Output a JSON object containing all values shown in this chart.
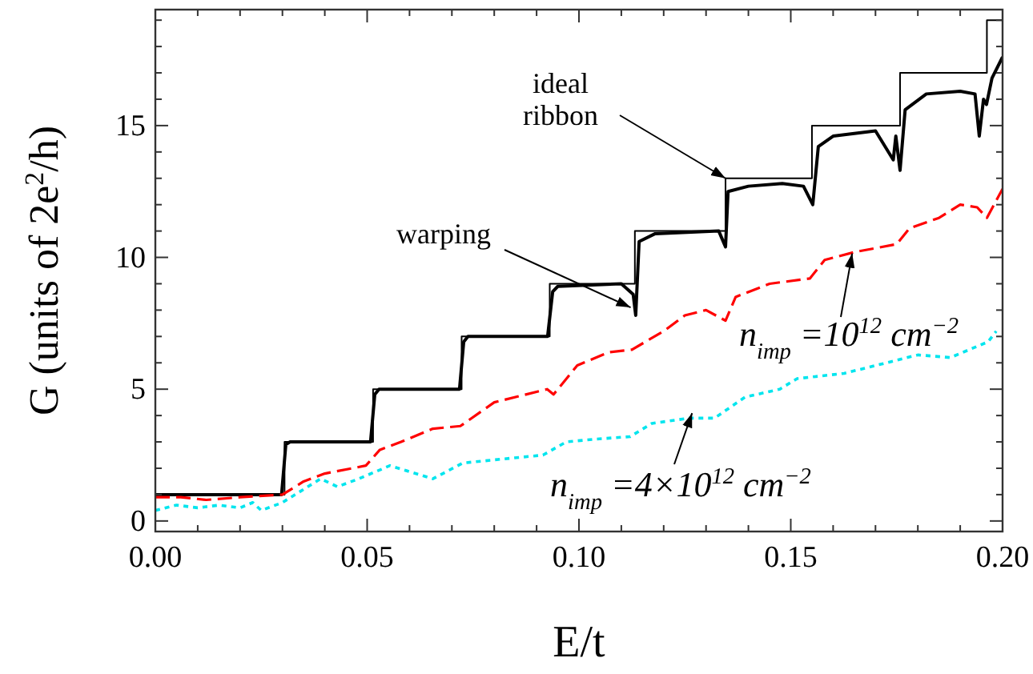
{
  "chart_data": {
    "type": "line",
    "xlabel": "E/t",
    "ylabel": "G (units of  2e$^{2}$/h)",
    "xlim": [
      0,
      0.2
    ],
    "ylim": [
      -0.4,
      19.4
    ],
    "xticks": [
      {
        "value": 0,
        "label": "0.00"
      },
      {
        "value": 0.01,
        "label": null
      },
      {
        "value": 0.02,
        "label": null
      },
      {
        "value": 0.03,
        "label": null
      },
      {
        "value": 0.04,
        "label": null
      },
      {
        "value": 0.05,
        "label": "0.05"
      },
      {
        "value": 0.06,
        "label": null
      },
      {
        "value": 0.07,
        "label": null
      },
      {
        "value": 0.08,
        "label": null
      },
      {
        "value": 0.09,
        "label": null
      },
      {
        "value": 0.1,
        "label": "0.10"
      },
      {
        "value": 0.11,
        "label": null
      },
      {
        "value": 0.12,
        "label": null
      },
      {
        "value": 0.13,
        "label": null
      },
      {
        "value": 0.14,
        "label": null
      },
      {
        "value": 0.15,
        "label": "0.15"
      },
      {
        "value": 0.16,
        "label": null
      },
      {
        "value": 0.17,
        "label": null
      },
      {
        "value": 0.18,
        "label": null
      },
      {
        "value": 0.19,
        "label": null
      },
      {
        "value": 0.2,
        "label": "0.20"
      }
    ],
    "yticks": [
      0,
      {
        "value": 1,
        "label": null
      },
      {
        "value": 2,
        "label": null
      },
      {
        "value": 3,
        "label": null
      },
      {
        "value": 4,
        "label": null
      },
      5,
      {
        "value": 6,
        "label": null
      },
      {
        "value": 7,
        "label": null
      },
      {
        "value": 8,
        "label": null
      },
      {
        "value": 9,
        "label": null
      },
      10,
      {
        "value": 11,
        "label": null
      },
      {
        "value": 12,
        "label": null
      },
      {
        "value": 13,
        "label": null
      },
      {
        "value": 14,
        "label": null
      },
      15,
      {
        "value": 16,
        "label": null
      },
      {
        "value": 17,
        "label": null
      },
      {
        "value": 18,
        "label": null
      },
      {
        "value": 19,
        "label": null
      }
    ],
    "grid": false,
    "series": [
      {
        "type": "step",
        "color": "#000000",
        "line_style": "solid",
        "x": [
          0,
          0.0305,
          0.0514,
          0.0723,
          0.0931,
          0.1132,
          0.1346,
          0.155,
          0.1758,
          0.1963,
          0.2
        ],
        "values": [
          1,
          3,
          5,
          7,
          9,
          11,
          13,
          15,
          17,
          19,
          19
        ]
      },
      {
        "type": "line",
        "color": "#000000",
        "line_style": "solid",
        "x": [
          0,
          0.0298,
          0.0308,
          0.0318,
          0.0508,
          0.0518,
          0.0528,
          0.0718,
          0.0728,
          0.0738,
          0.0926,
          0.0938,
          0.095,
          0.11,
          0.1128,
          0.1134,
          0.1142,
          0.118,
          0.133,
          0.1346,
          0.1352,
          0.14,
          0.148,
          0.153,
          0.1552,
          0.1565,
          0.16,
          0.17,
          0.1742,
          0.1748,
          0.1758,
          0.177,
          0.182,
          0.19,
          0.1935,
          0.1945,
          0.1955,
          0.1962,
          0.1975,
          0.2
        ],
        "values": [
          1,
          1,
          2.9,
          3,
          3,
          4.8,
          5,
          5,
          6.8,
          7,
          7,
          8.7,
          8.9,
          9,
          8.6,
          7.8,
          10.6,
          10.9,
          11,
          10.4,
          12.5,
          12.7,
          12.8,
          12.7,
          12,
          14.2,
          14.6,
          14.8,
          13.7,
          14.6,
          13.3,
          15.6,
          16.2,
          16.3,
          16.2,
          14.6,
          16,
          15.8,
          16.8,
          17.6
        ]
      },
      {
        "type": "line",
        "color": "#ff0000",
        "line_style": "dashed",
        "x": [
          0,
          0.006,
          0.012,
          0.02,
          0.03,
          0.035,
          0.04,
          0.0497,
          0.053,
          0.058,
          0.0655,
          0.072,
          0.08,
          0.0925,
          0.094,
          0.0996,
          0.107,
          0.1125,
          0.12,
          0.125,
          0.13,
          0.1346,
          0.137,
          0.145,
          0.1545,
          0.158,
          0.165,
          0.175,
          0.178,
          0.185,
          0.19,
          0.194,
          0.1963,
          0.2
        ],
        "values": [
          0.9,
          0.9,
          0.8,
          0.9,
          1.0,
          1.5,
          1.8,
          2.1,
          2.7,
          3.0,
          3.5,
          3.6,
          4.5,
          5.0,
          4.8,
          5.9,
          6.4,
          6.5,
          7.2,
          7.8,
          8.0,
          7.6,
          8.5,
          9.0,
          9.2,
          9.9,
          10.2,
          10.5,
          11.1,
          11.5,
          12.0,
          11.9,
          11.5,
          12.6
        ]
      },
      {
        "type": "line",
        "color": "#00e5ee",
        "line_style": "dotted",
        "x": [
          0,
          0.005,
          0.01,
          0.015,
          0.02,
          0.023,
          0.025,
          0.03,
          0.035,
          0.039,
          0.043,
          0.048,
          0.0554,
          0.0655,
          0.0726,
          0.0915,
          0.097,
          0.1035,
          0.1121,
          0.1172,
          0.126,
          0.132,
          0.1392,
          0.1474,
          0.1515,
          0.1626,
          0.1701,
          0.18,
          0.1877,
          0.1966,
          0.1985
        ],
        "values": [
          0.4,
          0.6,
          0.5,
          0.6,
          0.5,
          0.7,
          0.4,
          0.7,
          1.2,
          1.6,
          1.3,
          1.6,
          2.1,
          1.6,
          2.2,
          2.5,
          3.0,
          3.1,
          3.2,
          3.7,
          3.9,
          3.9,
          4.7,
          5.0,
          5.4,
          5.6,
          5.9,
          6.3,
          6.2,
          6.8,
          7.2
        ]
      }
    ],
    "annotations": [
      {
        "text": "ideal ribbon",
        "x": 0.1346,
        "y": 13
      },
      {
        "text": "warping",
        "x": 0.1122,
        "y": 8.1
      },
      {
        "text": "n$_{imp}$ =10$^{12}$ cm$^{−2}$",
        "x": 0.1645,
        "y": 10.15
      },
      {
        "text": "n$_{imp}$ =4×10$^{12}$ cm$^{−2}$",
        "x": 0.1267,
        "y": 4.09
      }
    ]
  }
}
